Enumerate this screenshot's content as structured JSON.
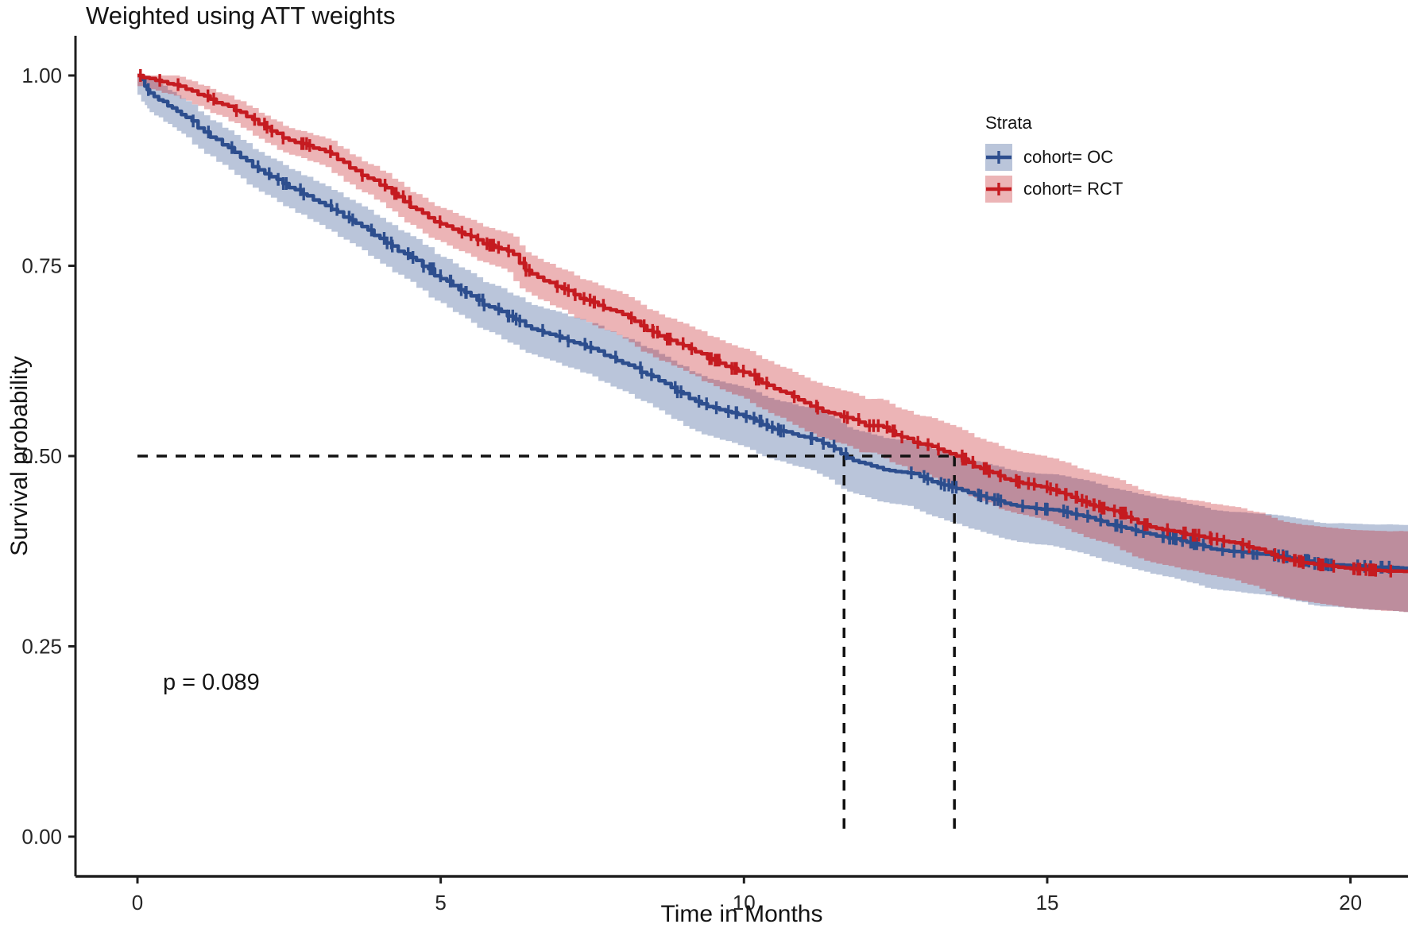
{
  "title": "Weighted using ATT weights",
  "legend": {
    "title": "Strata",
    "items": [
      {
        "label": "cohort= OC",
        "color": "#2D4E8E"
      },
      {
        "label": "cohort= RCT",
        "color": "#C51B20"
      }
    ]
  },
  "chart_data": {
    "type": "line",
    "subtype": "kaplan-meier-survival",
    "title": "Weighted using ATT weights",
    "xlabel": "Time in Months",
    "ylabel": "Survival probability",
    "xlim": [
      0,
      21
    ],
    "ylim": [
      0,
      1
    ],
    "grid": false,
    "legend_position": "upper-right",
    "p_value": "p = 0.089",
    "axis_color": "#1f1f1f",
    "median_line_color": "#111111",
    "x_ticks": [
      {
        "v": 0,
        "label": "0"
      },
      {
        "v": 5,
        "label": "5"
      },
      {
        "v": 10,
        "label": "10"
      },
      {
        "v": 15,
        "label": "15"
      },
      {
        "v": 20,
        "label": "20"
      }
    ],
    "y_ticks": [
      {
        "v": 0.0,
        "label": "0.00"
      },
      {
        "v": 0.25,
        "label": "0.25"
      },
      {
        "v": 0.5,
        "label": "0.50"
      },
      {
        "v": 0.75,
        "label": "0.75"
      },
      {
        "v": 1.0,
        "label": "1.00"
      }
    ],
    "median_reference": {
      "probability": 0.5,
      "times": {
        "OC": 11.65,
        "RCT": 13.47
      }
    },
    "series": [
      {
        "name": "cohort= OC",
        "color": "#2D4E8E",
        "band_opacity": 0.33,
        "band_halfwidth": [
          0.02,
          0.057
        ],
        "censor_count": 150,
        "censor_seed": 13,
        "points": [
          [
            0,
            1.0
          ],
          [
            0.12,
            0.986
          ],
          [
            0.2,
            0.977
          ],
          [
            0.35,
            0.968
          ],
          [
            0.5,
            0.96
          ],
          [
            0.65,
            0.953
          ],
          [
            0.8,
            0.945
          ],
          [
            1.0,
            0.931
          ],
          [
            1.2,
            0.919
          ],
          [
            1.4,
            0.909
          ],
          [
            1.6,
            0.899
          ],
          [
            1.8,
            0.888
          ],
          [
            2.0,
            0.876
          ],
          [
            2.2,
            0.867
          ],
          [
            2.4,
            0.858
          ],
          [
            2.6,
            0.85
          ],
          [
            2.8,
            0.842
          ],
          [
            3.0,
            0.833
          ],
          [
            3.2,
            0.824
          ],
          [
            3.4,
            0.814
          ],
          [
            3.6,
            0.806
          ],
          [
            3.8,
            0.797
          ],
          [
            4.0,
            0.786
          ],
          [
            4.2,
            0.776
          ],
          [
            4.4,
            0.766
          ],
          [
            4.6,
            0.757
          ],
          [
            4.8,
            0.746
          ],
          [
            5.0,
            0.733
          ],
          [
            5.2,
            0.724
          ],
          [
            5.4,
            0.715
          ],
          [
            5.6,
            0.705
          ],
          [
            5.8,
            0.696
          ],
          [
            6.0,
            0.69
          ],
          [
            6.2,
            0.68
          ],
          [
            6.4,
            0.671
          ],
          [
            6.6,
            0.665
          ],
          [
            6.8,
            0.66
          ],
          [
            7.0,
            0.655
          ],
          [
            7.2,
            0.649
          ],
          [
            7.4,
            0.643
          ],
          [
            7.6,
            0.638
          ],
          [
            7.8,
            0.63
          ],
          [
            8.0,
            0.622
          ],
          [
            8.2,
            0.616
          ],
          [
            8.4,
            0.607
          ],
          [
            8.6,
            0.599
          ],
          [
            8.8,
            0.59
          ],
          [
            9.0,
            0.582
          ],
          [
            9.2,
            0.572
          ],
          [
            9.4,
            0.565
          ],
          [
            9.6,
            0.561
          ],
          [
            9.8,
            0.557
          ],
          [
            10.0,
            0.552
          ],
          [
            10.2,
            0.546
          ],
          [
            10.4,
            0.538
          ],
          [
            10.6,
            0.533
          ],
          [
            10.8,
            0.529
          ],
          [
            11.0,
            0.525
          ],
          [
            11.2,
            0.521
          ],
          [
            11.4,
            0.513
          ],
          [
            11.6,
            0.503
          ],
          [
            11.8,
            0.494
          ],
          [
            12.0,
            0.49
          ],
          [
            12.2,
            0.485
          ],
          [
            12.4,
            0.481
          ],
          [
            12.6,
            0.479
          ],
          [
            12.8,
            0.477
          ],
          [
            13.0,
            0.47
          ],
          [
            13.2,
            0.464
          ],
          [
            13.4,
            0.459
          ],
          [
            13.6,
            0.455
          ],
          [
            13.8,
            0.449
          ],
          [
            14.0,
            0.445
          ],
          [
            14.2,
            0.441
          ],
          [
            14.4,
            0.436
          ],
          [
            14.6,
            0.433
          ],
          [
            14.8,
            0.431
          ],
          [
            15.0,
            0.43
          ],
          [
            15.2,
            0.428
          ],
          [
            15.4,
            0.424
          ],
          [
            15.6,
            0.421
          ],
          [
            15.8,
            0.416
          ],
          [
            16.0,
            0.41
          ],
          [
            16.2,
            0.407
          ],
          [
            16.4,
            0.403
          ],
          [
            16.6,
            0.399
          ],
          [
            16.8,
            0.395
          ],
          [
            17.0,
            0.392
          ],
          [
            17.2,
            0.389
          ],
          [
            17.4,
            0.385
          ],
          [
            17.6,
            0.381
          ],
          [
            17.8,
            0.377
          ],
          [
            18.0,
            0.375
          ],
          [
            18.2,
            0.374
          ],
          [
            18.4,
            0.372
          ],
          [
            18.6,
            0.371
          ],
          [
            18.8,
            0.369
          ],
          [
            19.0,
            0.366
          ],
          [
            19.2,
            0.363
          ],
          [
            19.4,
            0.359
          ],
          [
            19.6,
            0.357
          ],
          [
            19.8,
            0.357
          ],
          [
            20.0,
            0.356
          ],
          [
            20.2,
            0.355
          ],
          [
            20.4,
            0.354
          ],
          [
            20.6,
            0.354
          ],
          [
            20.8,
            0.353
          ],
          [
            20.95,
            0.352
          ]
        ]
      },
      {
        "name": "cohort= RCT",
        "color": "#C51B20",
        "band_opacity": 0.33,
        "band_halfwidth": [
          0.011,
          0.053
        ],
        "censor_count": 160,
        "censor_seed": 47,
        "points": [
          [
            0,
            1.0
          ],
          [
            0.2,
            0.996
          ],
          [
            0.4,
            0.992
          ],
          [
            0.6,
            0.988
          ],
          [
            0.8,
            0.982
          ],
          [
            1.0,
            0.975
          ],
          [
            1.2,
            0.969
          ],
          [
            1.4,
            0.962
          ],
          [
            1.6,
            0.954
          ],
          [
            1.8,
            0.946
          ],
          [
            2.0,
            0.936
          ],
          [
            2.2,
            0.927
          ],
          [
            2.4,
            0.918
          ],
          [
            2.6,
            0.912
          ],
          [
            2.8,
            0.908
          ],
          [
            3.0,
            0.903
          ],
          [
            3.2,
            0.897
          ],
          [
            3.4,
            0.886
          ],
          [
            3.6,
            0.875
          ],
          [
            3.8,
            0.865
          ],
          [
            4.0,
            0.856
          ],
          [
            4.2,
            0.845
          ],
          [
            4.4,
            0.834
          ],
          [
            4.6,
            0.824
          ],
          [
            4.8,
            0.813
          ],
          [
            5.0,
            0.805
          ],
          [
            5.2,
            0.798
          ],
          [
            5.4,
            0.791
          ],
          [
            5.6,
            0.784
          ],
          [
            5.8,
            0.777
          ],
          [
            6.0,
            0.772
          ],
          [
            6.2,
            0.765
          ],
          [
            6.4,
            0.744
          ],
          [
            6.6,
            0.735
          ],
          [
            6.8,
            0.728
          ],
          [
            7.0,
            0.72
          ],
          [
            7.2,
            0.712
          ],
          [
            7.4,
            0.705
          ],
          [
            7.6,
            0.698
          ],
          [
            7.8,
            0.692
          ],
          [
            8.0,
            0.686
          ],
          [
            8.2,
            0.677
          ],
          [
            8.4,
            0.665
          ],
          [
            8.6,
            0.658
          ],
          [
            8.8,
            0.652
          ],
          [
            9.0,
            0.645
          ],
          [
            9.2,
            0.637
          ],
          [
            9.4,
            0.628
          ],
          [
            9.6,
            0.622
          ],
          [
            9.8,
            0.615
          ],
          [
            10.0,
            0.61
          ],
          [
            10.2,
            0.601
          ],
          [
            10.4,
            0.593
          ],
          [
            10.6,
            0.585
          ],
          [
            10.8,
            0.578
          ],
          [
            11.0,
            0.57
          ],
          [
            11.2,
            0.563
          ],
          [
            11.4,
            0.557
          ],
          [
            11.6,
            0.552
          ],
          [
            11.8,
            0.548
          ],
          [
            12.0,
            0.54
          ],
          [
            12.2,
            0.54
          ],
          [
            12.4,
            0.533
          ],
          [
            12.6,
            0.525
          ],
          [
            12.8,
            0.518
          ],
          [
            13.0,
            0.515
          ],
          [
            13.2,
            0.509
          ],
          [
            13.4,
            0.503
          ],
          [
            13.6,
            0.496
          ],
          [
            13.8,
            0.486
          ],
          [
            14.0,
            0.48
          ],
          [
            14.2,
            0.474
          ],
          [
            14.4,
            0.468
          ],
          [
            14.6,
            0.464
          ],
          [
            14.8,
            0.461
          ],
          [
            15.0,
            0.457
          ],
          [
            15.2,
            0.452
          ],
          [
            15.4,
            0.446
          ],
          [
            15.6,
            0.44
          ],
          [
            15.8,
            0.434
          ],
          [
            16.0,
            0.43
          ],
          [
            16.2,
            0.425
          ],
          [
            16.4,
            0.417
          ],
          [
            16.6,
            0.41
          ],
          [
            16.8,
            0.405
          ],
          [
            17.0,
            0.402
          ],
          [
            17.2,
            0.399
          ],
          [
            17.4,
            0.396
          ],
          [
            17.6,
            0.393
          ],
          [
            17.8,
            0.39
          ],
          [
            18.0,
            0.387
          ],
          [
            18.2,
            0.384
          ],
          [
            18.4,
            0.379
          ],
          [
            18.6,
            0.374
          ],
          [
            18.8,
            0.367
          ],
          [
            19.0,
            0.363
          ],
          [
            19.2,
            0.36
          ],
          [
            19.4,
            0.358
          ],
          [
            19.6,
            0.356
          ],
          [
            19.8,
            0.354
          ],
          [
            20.0,
            0.352
          ],
          [
            20.2,
            0.351
          ],
          [
            20.4,
            0.35
          ],
          [
            20.6,
            0.349
          ],
          [
            20.8,
            0.349
          ],
          [
            20.95,
            0.348
          ]
        ]
      }
    ]
  }
}
